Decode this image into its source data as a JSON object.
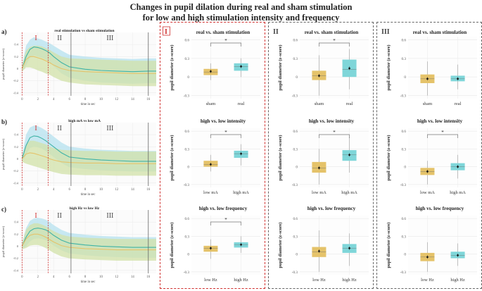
{
  "title_line1": "Changes in pupil dilation during real and sham stimulation",
  "title_line2": "for low and high stimulation intensity and frequency",
  "colors": {
    "sham": "#e5c36a",
    "real": "#3fb3a6",
    "real_box": "#7fd6d9",
    "sham_band": "#d2e2a8",
    "real_band": "#b5e2ef",
    "red": "#d0302f",
    "grid": "#ececec"
  },
  "timecourse": {
    "ylabel": "pupil diameter (z-score)",
    "xlabel": "time in sec",
    "x_ticks": [
      0,
      2,
      4,
      6,
      8,
      10,
      12,
      14,
      16
    ],
    "y_ticks": [
      0.4,
      0.2,
      0,
      -0.2,
      -0.4
    ],
    "xlim": [
      -0.3,
      17
    ],
    "ylim": [
      -0.45,
      0.6
    ],
    "phase_labels": [
      "I",
      "II",
      "III"
    ],
    "phase_boundaries_red": [
      0,
      3.3
    ],
    "phase_boundaries_gray": [
      6.2,
      16
    ],
    "panels": [
      {
        "letter": "a)",
        "subtitle": "real stimulation vs sham stimulation"
      },
      {
        "letter": "b)",
        "subtitle": "high mA vs low mA"
      },
      {
        "letter": "c)",
        "subtitle": "high Hz vs low Hz"
      }
    ]
  },
  "phase_headers": [
    "I",
    "II",
    "III"
  ],
  "chart_data": [
    {
      "type": "line",
      "panel": "a",
      "title": "real stimulation vs sham stimulation",
      "xlabel": "time in sec",
      "ylabel": "pupil diameter (z-score)",
      "x": [
        0,
        0.5,
        1,
        1.5,
        2,
        2.5,
        3,
        3.5,
        4,
        5,
        6,
        8,
        10,
        12,
        14,
        16,
        17
      ],
      "series": [
        {
          "name": "real",
          "values": [
            0,
            0.2,
            0.32,
            0.36,
            0.35,
            0.33,
            0.3,
            0.26,
            0.2,
            0.1,
            0.03,
            -0.01,
            -0.03,
            -0.04,
            -0.05,
            -0.04,
            -0.04
          ],
          "band": [
            [
              -0.05,
              0.05
            ],
            [
              0.05,
              0.38
            ],
            [
              0.18,
              0.48
            ],
            [
              0.22,
              0.52
            ],
            [
              0.2,
              0.5
            ],
            [
              0.18,
              0.48
            ],
            [
              0.15,
              0.45
            ],
            [
              0.1,
              0.42
            ],
            [
              0.04,
              0.38
            ],
            [
              -0.08,
              0.3
            ],
            [
              -0.15,
              0.23
            ],
            [
              -0.2,
              0.2
            ],
            [
              -0.23,
              0.18
            ],
            [
              -0.24,
              0.17
            ],
            [
              -0.25,
              0.16
            ],
            [
              -0.24,
              0.17
            ],
            [
              -0.24,
              0.17
            ]
          ]
        },
        {
          "name": "sham",
          "values": [
            0,
            0.15,
            0.2,
            0.2,
            0.18,
            0.16,
            0.13,
            0.1,
            0.06,
            0,
            -0.03,
            -0.05,
            -0.06,
            -0.07,
            -0.08,
            -0.08,
            -0.08
          ],
          "band": [
            [
              -0.05,
              0.05
            ],
            [
              0.02,
              0.3
            ],
            [
              0.02,
              0.36
            ],
            [
              0,
              0.38
            ],
            [
              -0.03,
              0.38
            ],
            [
              -0.05,
              0.37
            ],
            [
              -0.08,
              0.34
            ],
            [
              -0.1,
              0.31
            ],
            [
              -0.14,
              0.27
            ],
            [
              -0.2,
              0.2
            ],
            [
              -0.23,
              0.17
            ],
            [
              -0.26,
              0.16
            ],
            [
              -0.27,
              0.15
            ],
            [
              -0.28,
              0.14
            ],
            [
              -0.29,
              0.13
            ],
            [
              -0.29,
              0.13
            ],
            [
              -0.29,
              0.13
            ]
          ]
        }
      ]
    },
    {
      "type": "line",
      "panel": "b",
      "title": "high mA vs low mA",
      "xlabel": "time in sec",
      "ylabel": "pupil diameter (z-score)",
      "x": [
        0,
        0.5,
        1,
        1.5,
        2,
        2.5,
        3,
        3.5,
        4,
        5,
        6,
        8,
        10,
        12,
        14,
        16,
        17
      ],
      "series": [
        {
          "name": "high mA",
          "values": [
            0,
            0.22,
            0.35,
            0.38,
            0.37,
            0.34,
            0.3,
            0.25,
            0.2,
            0.1,
            0.03,
            0,
            -0.02,
            -0.03,
            -0.04,
            -0.04,
            -0.04
          ],
          "band": [
            [
              -0.05,
              0.05
            ],
            [
              0.06,
              0.4
            ],
            [
              0.18,
              0.52
            ],
            [
              0.2,
              0.55
            ],
            [
              0.19,
              0.54
            ],
            [
              0.17,
              0.51
            ],
            [
              0.13,
              0.47
            ],
            [
              0.08,
              0.42
            ],
            [
              0.03,
              0.37
            ],
            [
              -0.07,
              0.27
            ],
            [
              -0.14,
              0.2
            ],
            [
              -0.17,
              0.17
            ],
            [
              -0.19,
              0.15
            ],
            [
              -0.2,
              0.14
            ],
            [
              -0.21,
              0.13
            ],
            [
              -0.21,
              0.13
            ],
            [
              -0.21,
              0.13
            ]
          ]
        },
        {
          "name": "low mA",
          "values": [
            0,
            0.08,
            0.1,
            0.09,
            0.07,
            0.05,
            0.03,
            0,
            -0.02,
            -0.05,
            -0.06,
            -0.07,
            -0.07,
            -0.08,
            -0.08,
            -0.08,
            -0.08
          ],
          "band": [
            [
              -0.05,
              0.05
            ],
            [
              -0.08,
              0.24
            ],
            [
              -0.1,
              0.3
            ],
            [
              -0.12,
              0.3
            ],
            [
              -0.14,
              0.28
            ],
            [
              -0.16,
              0.26
            ],
            [
              -0.18,
              0.24
            ],
            [
              -0.2,
              0.2
            ],
            [
              -0.22,
              0.18
            ],
            [
              -0.25,
              0.15
            ],
            [
              -0.26,
              0.14
            ],
            [
              -0.27,
              0.13
            ],
            [
              -0.27,
              0.13
            ],
            [
              -0.28,
              0.12
            ],
            [
              -0.28,
              0.12
            ],
            [
              -0.28,
              0.12
            ],
            [
              -0.28,
              0.12
            ]
          ]
        }
      ]
    },
    {
      "type": "line",
      "panel": "c",
      "title": "high Hz vs low Hz",
      "xlabel": "time in sec",
      "ylabel": "pupil diameter (z-score)",
      "x": [
        0,
        0.5,
        1,
        1.5,
        2,
        2.5,
        3,
        3.5,
        4,
        5,
        6,
        8,
        10,
        12,
        14,
        16,
        17
      ],
      "series": [
        {
          "name": "high Hz",
          "values": [
            0,
            0.15,
            0.25,
            0.29,
            0.3,
            0.29,
            0.27,
            0.23,
            0.18,
            0.1,
            0.05,
            0.02,
            0,
            -0.01,
            -0.02,
            -0.02,
            -0.02
          ],
          "band": [
            [
              -0.05,
              0.05
            ],
            [
              0,
              0.3
            ],
            [
              0.08,
              0.42
            ],
            [
              0.12,
              0.46
            ],
            [
              0.13,
              0.47
            ],
            [
              0.12,
              0.46
            ],
            [
              0.1,
              0.44
            ],
            [
              0.06,
              0.4
            ],
            [
              0.01,
              0.35
            ],
            [
              -0.07,
              0.27
            ],
            [
              -0.12,
              0.22
            ],
            [
              -0.15,
              0.19
            ],
            [
              -0.17,
              0.17
            ],
            [
              -0.18,
              0.16
            ],
            [
              -0.19,
              0.15
            ],
            [
              -0.19,
              0.15
            ],
            [
              -0.19,
              0.15
            ]
          ]
        },
        {
          "name": "low Hz",
          "values": [
            0,
            0.12,
            0.18,
            0.2,
            0.2,
            0.18,
            0.15,
            0.11,
            0.07,
            0.01,
            -0.02,
            -0.04,
            -0.05,
            -0.06,
            -0.06,
            -0.06,
            -0.06
          ],
          "band": [
            [
              -0.05,
              0.05
            ],
            [
              -0.03,
              0.27
            ],
            [
              0.01,
              0.35
            ],
            [
              0.02,
              0.38
            ],
            [
              0.02,
              0.38
            ],
            [
              0,
              0.36
            ],
            [
              -0.03,
              0.33
            ],
            [
              -0.07,
              0.29
            ],
            [
              -0.11,
              0.25
            ],
            [
              -0.17,
              0.19
            ],
            [
              -0.2,
              0.16
            ],
            [
              -0.22,
              0.14
            ],
            [
              -0.23,
              0.13
            ],
            [
              -0.24,
              0.12
            ],
            [
              -0.24,
              0.12
            ],
            [
              -0.24,
              0.12
            ],
            [
              -0.24,
              0.12
            ]
          ]
        }
      ]
    },
    {
      "type": "box",
      "phase": "I",
      "title": "real vs. sham stimulation",
      "ylabel": "pupil diameter (z-score)",
      "y_ticks": [
        0.6,
        0.3,
        0,
        -0.3
      ],
      "ylim": [
        -0.35,
        0.65
      ],
      "significant": true,
      "boxes": [
        {
          "label": "sham",
          "q1": 0.03,
          "median": 0.08,
          "q3": 0.13,
          "mean": 0.09,
          "lo": -0.05,
          "hi": 0.22,
          "color": "sham"
        },
        {
          "label": "real",
          "q1": 0.1,
          "median": 0.17,
          "q3": 0.22,
          "mean": 0.17,
          "lo": 0.0,
          "hi": 0.3,
          "color": "real"
        }
      ]
    },
    {
      "type": "box",
      "phase": "I",
      "title": "high vs. low intensity",
      "ylabel": "pupil diameter (z-score)",
      "y_ticks": [
        0.6,
        0.3,
        0,
        -0.3
      ],
      "ylim": [
        -0.35,
        0.65
      ],
      "significant": true,
      "boxes": [
        {
          "label": "low mA",
          "q1": 0.0,
          "median": 0.04,
          "q3": 0.1,
          "mean": 0.04,
          "lo": -0.08,
          "hi": 0.2,
          "color": "sham"
        },
        {
          "label": "high mA",
          "q1": 0.15,
          "median": 0.22,
          "q3": 0.27,
          "mean": 0.22,
          "lo": 0.02,
          "hi": 0.38,
          "color": "real"
        }
      ]
    },
    {
      "type": "box",
      "phase": "I",
      "title": "high vs. low frequency",
      "ylabel": "pupil diameter (z-score)",
      "y_ticks": [
        0.6,
        0.3,
        0,
        -0.3
      ],
      "ylim": [
        -0.35,
        0.65
      ],
      "significant": true,
      "boxes": [
        {
          "label": "low Hz",
          "q1": 0.04,
          "median": 0.1,
          "q3": 0.14,
          "mean": 0.1,
          "lo": -0.08,
          "hi": 0.25,
          "color": "sham"
        },
        {
          "label": "high Hz",
          "q1": 0.11,
          "median": 0.16,
          "q3": 0.2,
          "mean": 0.16,
          "lo": 0.02,
          "hi": 0.3,
          "color": "real"
        }
      ]
    },
    {
      "type": "box",
      "phase": "II",
      "title": "real vs. sham stimulation",
      "ylabel": "pupil diameter (z-score)",
      "y_ticks": [
        0.6,
        0.3,
        0,
        -0.3
      ],
      "ylim": [
        -0.35,
        0.65
      ],
      "significant": true,
      "boxes": [
        {
          "label": "sham",
          "q1": -0.05,
          "median": 0.02,
          "q3": 0.1,
          "mean": 0.02,
          "lo": -0.3,
          "hi": 0.35,
          "color": "sham"
        },
        {
          "label": "real",
          "q1": 0.0,
          "median": 0.12,
          "q3": 0.28,
          "mean": 0.14,
          "lo": -0.2,
          "hi": 0.45,
          "color": "real"
        }
      ]
    },
    {
      "type": "box",
      "phase": "II",
      "title": "high vs. low intensity",
      "ylabel": "pupil diameter (z-score)",
      "y_ticks": [
        0.6,
        0.3,
        0,
        -0.3
      ],
      "ylim": [
        -0.35,
        0.65
      ],
      "significant": true,
      "boxes": [
        {
          "label": "low mA",
          "q1": -0.1,
          "median": -0.02,
          "q3": 0.08,
          "mean": -0.02,
          "lo": -0.3,
          "hi": 0.3,
          "color": "sham"
        },
        {
          "label": "high mA",
          "q1": 0.1,
          "median": 0.2,
          "q3": 0.28,
          "mean": 0.2,
          "lo": -0.1,
          "hi": 0.5,
          "color": "real"
        }
      ]
    },
    {
      "type": "box",
      "phase": "II",
      "title": "high vs. low frequency",
      "ylabel": "pupil diameter (z-score)",
      "y_ticks": [
        0.6,
        0.3,
        0,
        -0.3
      ],
      "ylim": [
        -0.35,
        0.65
      ],
      "significant": false,
      "boxes": [
        {
          "label": "low Hz",
          "q1": -0.05,
          "median": 0.04,
          "q3": 0.12,
          "mean": 0.05,
          "lo": -0.3,
          "hi": 0.4,
          "color": "sham"
        },
        {
          "label": "high Hz",
          "q1": 0.02,
          "median": 0.1,
          "q3": 0.17,
          "mean": 0.1,
          "lo": -0.2,
          "hi": 0.35,
          "color": "real"
        }
      ]
    },
    {
      "type": "box",
      "phase": "III",
      "title": "real vs. sham stimulation",
      "ylabel": "pupil diameter (z-score)",
      "y_ticks": [
        0.6,
        0.3,
        0,
        -0.3
      ],
      "ylim": [
        -0.35,
        0.65
      ],
      "significant": false,
      "boxes": [
        {
          "label": "sham",
          "q1": -0.1,
          "median": -0.03,
          "q3": 0.04,
          "mean": -0.03,
          "lo": -0.3,
          "hi": 0.25,
          "color": "sham"
        },
        {
          "label": "real",
          "q1": -0.07,
          "median": -0.03,
          "q3": 0.02,
          "mean": -0.03,
          "lo": -0.2,
          "hi": 0.2,
          "color": "real"
        }
      ]
    },
    {
      "type": "box",
      "phase": "III",
      "title": "high vs. low intensity",
      "ylabel": "pupil diameter (z-score)",
      "y_ticks": [
        0.6,
        0.3,
        0,
        -0.3
      ],
      "ylim": [
        -0.35,
        0.65
      ],
      "significant": true,
      "boxes": [
        {
          "label": "low mA",
          "q1": -0.14,
          "median": -0.08,
          "q3": -0.02,
          "mean": -0.08,
          "lo": -0.3,
          "hi": 0.1,
          "color": "sham"
        },
        {
          "label": "high mA",
          "q1": -0.06,
          "median": 0.0,
          "q3": 0.06,
          "mean": 0.0,
          "lo": -0.2,
          "hi": 0.2,
          "color": "real"
        }
      ]
    },
    {
      "type": "box",
      "phase": "III",
      "title": "high vs. low frequency",
      "ylabel": "pupil diameter (z-score)",
      "y_ticks": [
        0.6,
        0.3,
        0,
        -0.3
      ],
      "ylim": [
        -0.35,
        0.65
      ],
      "significant": false,
      "boxes": [
        {
          "label": "low Hz",
          "q1": -0.12,
          "median": -0.05,
          "q3": 0.02,
          "mean": -0.05,
          "lo": -0.3,
          "hi": 0.2,
          "color": "sham"
        },
        {
          "label": "high Hz",
          "q1": -0.07,
          "median": -0.02,
          "q3": 0.04,
          "mean": -0.02,
          "lo": -0.2,
          "hi": 0.18,
          "color": "real"
        }
      ]
    }
  ]
}
